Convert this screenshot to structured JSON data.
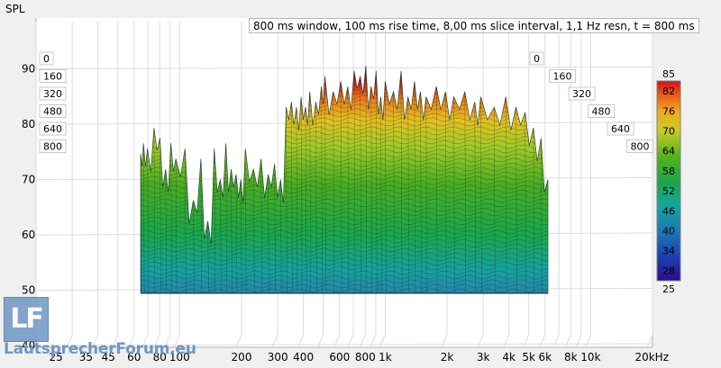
{
  "chart_data": {
    "type": "waterfall",
    "title": "800 ms window, 100 ms rise time, 8,00 ms slice interval, 1,1 Hz resn, t = 800 ms",
    "ylabel": "SPL",
    "xlabel": "",
    "y_ticks": [
      40,
      50,
      60,
      70,
      80,
      90
    ],
    "ylim": [
      40,
      95
    ],
    "x_scale": "log",
    "xlim": [
      20,
      20000
    ],
    "x_ticks": [
      {
        "value": 25,
        "label": "25"
      },
      {
        "value": 35,
        "label": "35"
      },
      {
        "value": 45,
        "label": "45"
      },
      {
        "value": 60,
        "label": "60"
      },
      {
        "value": 80,
        "label": "80"
      },
      {
        "value": 100,
        "label": "100"
      },
      {
        "value": 200,
        "label": "200"
      },
      {
        "value": 300,
        "label": "300"
      },
      {
        "value": 400,
        "label": "400"
      },
      {
        "value": 600,
        "label": "600"
      },
      {
        "value": 800,
        "label": "800"
      },
      {
        "value": 1000,
        "label": "1k"
      },
      {
        "value": 2000,
        "label": "2k"
      },
      {
        "value": 3000,
        "label": "3k"
      },
      {
        "value": 4000,
        "label": "4k"
      },
      {
        "value": 5000,
        "label": "5k"
      },
      {
        "value": 6000,
        "label": "6k"
      },
      {
        "value": 8000,
        "label": "8k"
      },
      {
        "value": 10000,
        "label": "10k"
      },
      {
        "value": 20000,
        "label": "20kHz"
      }
    ],
    "slice_times_ms": [
      "0",
      "160",
      "320",
      "480",
      "640",
      "800"
    ],
    "colorbar": {
      "min": 25,
      "max": 85,
      "ticks": [
        28,
        34,
        40,
        46,
        52,
        58,
        64,
        70,
        76,
        82
      ]
    },
    "envelope": {
      "freq_hz": [
        60,
        62,
        65,
        70,
        75,
        80,
        85,
        90,
        100,
        110,
        120,
        130,
        140,
        150,
        160,
        170,
        180,
        190,
        200,
        220,
        240,
        260,
        280,
        300,
        320,
        340,
        360,
        380,
        400,
        420,
        450,
        480,
        500,
        550,
        600,
        650,
        700,
        750,
        800,
        850,
        900,
        950,
        1000,
        1100,
        1200,
        1300,
        1400,
        1500,
        1600,
        1800,
        2000,
        2200,
        2500,
        2800,
        3000,
        3500,
        4000,
        4500,
        5000,
        5500,
        6000,
        6500
      ],
      "spl_db": [
        75,
        77,
        76,
        80,
        78,
        72,
        77,
        74,
        76,
        66,
        74,
        62,
        76,
        70,
        77,
        72,
        71,
        70,
        76,
        72,
        74,
        71,
        73,
        70,
        84,
        85,
        84,
        86,
        84,
        87,
        85,
        88,
        90,
        87,
        89,
        88,
        91,
        90,
        92,
        88,
        91,
        86,
        89,
        87,
        91,
        86,
        89,
        87,
        86,
        88,
        87,
        86,
        87,
        85,
        86,
        84,
        86,
        84,
        83,
        80,
        78,
        70
      ]
    },
    "grid": true
  },
  "branding": {
    "logo_letters": "LF",
    "logo_text": "LautsprecherForum.eu"
  },
  "colors": {
    "background": "#f0f0f0",
    "plot": "#ffffff",
    "grid": "#d2d2d2"
  }
}
